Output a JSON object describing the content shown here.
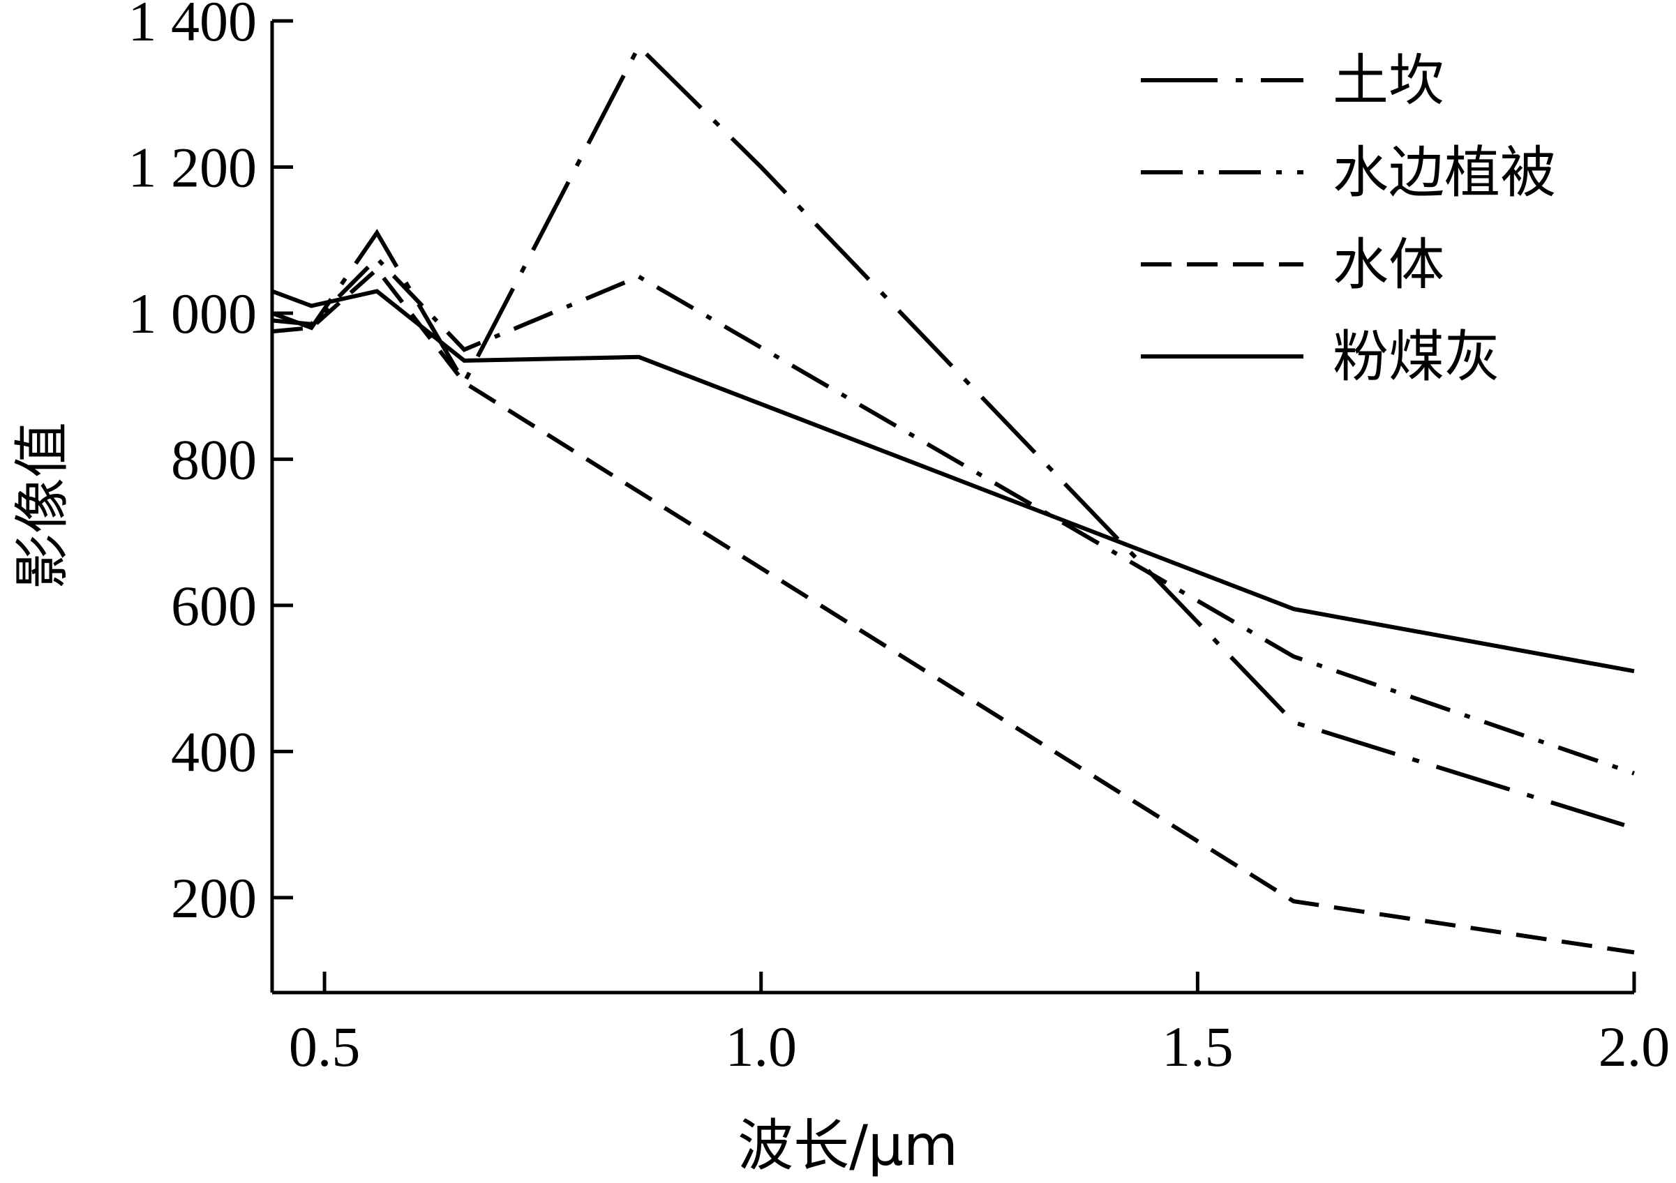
{
  "chart_data": {
    "type": "line",
    "xlabel": "波长/μm",
    "ylabel": "影像值",
    "xlim": [
      0.44,
      2.0
    ],
    "ylim": [
      70,
      1400
    ],
    "x_ticks": [
      0.5,
      1.0,
      1.5,
      2.0
    ],
    "x_tick_labels": [
      "0.5",
      "1.0",
      "1.5",
      "2.0"
    ],
    "y_ticks": [
      200,
      400,
      600,
      800,
      1000,
      1200,
      1400
    ],
    "y_tick_labels": [
      "200",
      "400",
      "600",
      "800",
      "1 000",
      "1 200",
      "1 400"
    ],
    "grid": false,
    "legend_position": "top-right",
    "series": [
      {
        "name": "土坎",
        "dash": "long-dash-dot",
        "x": [
          0.44,
          0.485,
          0.56,
          0.66,
          0.86,
          1.0,
          1.61,
          2.0
        ],
        "y": [
          1000,
          980,
          1110,
          905,
          1365,
          1200,
          440,
          295
        ]
      },
      {
        "name": "水边植被",
        "dash": "dash-dot",
        "x": [
          0.44,
          0.485,
          0.56,
          0.66,
          0.86,
          1.61,
          2.0
        ],
        "y": [
          990,
          985,
          1075,
          950,
          1050,
          530,
          370
        ]
      },
      {
        "name": "水体",
        "dash": "dashed",
        "x": [
          0.44,
          0.485,
          0.56,
          0.66,
          1.61,
          2.0
        ],
        "y": [
          975,
          980,
          1060,
          905,
          195,
          125
        ]
      },
      {
        "name": "粉煤灰",
        "dash": "solid",
        "x": [
          0.44,
          0.485,
          0.56,
          0.66,
          0.86,
          1.61,
          2.0
        ],
        "y": [
          1030,
          1010,
          1030,
          935,
          940,
          595,
          510
        ]
      }
    ]
  }
}
